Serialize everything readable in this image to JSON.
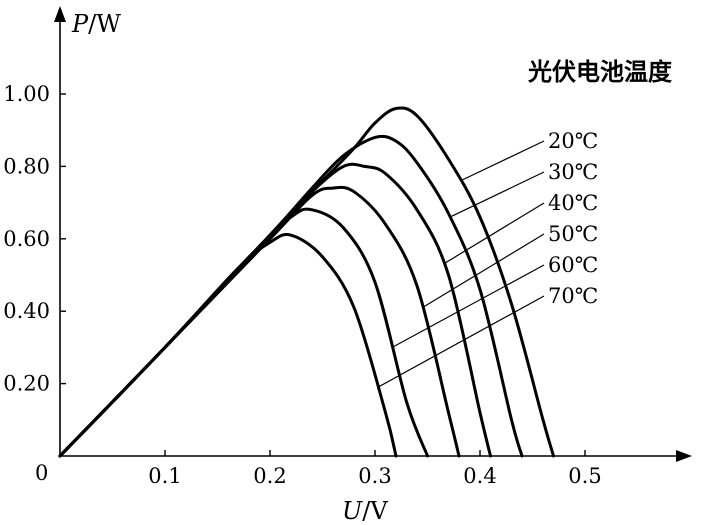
{
  "chart_data": {
    "type": "line",
    "title": "",
    "xlabel_var": "U",
    "xlabel_unit": "V",
    "ylabel_var": "P",
    "ylabel_unit": "W",
    "origin_label": "0",
    "legend_title": "光伏电池温度",
    "xlim": [
      0,
      0.6
    ],
    "ylim": [
      0,
      1.1
    ],
    "x_ticks": [
      0.1,
      0.2,
      0.3,
      0.4,
      0.5
    ],
    "x_tick_labels": [
      "0.1",
      "0.2",
      "0.3",
      "0.4",
      "0.5"
    ],
    "y_ticks": [
      0.2,
      0.4,
      0.6,
      0.8,
      1.0
    ],
    "y_tick_labels": [
      "0.20",
      "0.40",
      "0.60",
      "0.80",
      "1.00"
    ],
    "grid": false,
    "series": [
      {
        "name": "20℃",
        "x": [
          0,
          0.1,
          0.2,
          0.25,
          0.28,
          0.3,
          0.32,
          0.34,
          0.37,
          0.4,
          0.43,
          0.46,
          0.47
        ],
        "y": [
          0,
          0.3,
          0.61,
          0.76,
          0.85,
          0.92,
          0.96,
          0.94,
          0.82,
          0.66,
          0.42,
          0.1,
          0
        ]
      },
      {
        "name": "30℃",
        "x": [
          0,
          0.1,
          0.2,
          0.24,
          0.27,
          0.3,
          0.32,
          0.34,
          0.37,
          0.4,
          0.43,
          0.44
        ],
        "y": [
          0,
          0.3,
          0.61,
          0.74,
          0.83,
          0.88,
          0.87,
          0.81,
          0.67,
          0.46,
          0.1,
          0
        ]
      },
      {
        "name": "40℃",
        "x": [
          0,
          0.1,
          0.2,
          0.24,
          0.27,
          0.29,
          0.31,
          0.34,
          0.37,
          0.4,
          0.41
        ],
        "y": [
          0,
          0.3,
          0.61,
          0.73,
          0.8,
          0.8,
          0.78,
          0.68,
          0.5,
          0.12,
          0
        ]
      },
      {
        "name": "50℃",
        "x": [
          0,
          0.1,
          0.2,
          0.24,
          0.26,
          0.28,
          0.31,
          0.34,
          0.37,
          0.38
        ],
        "y": [
          0,
          0.3,
          0.6,
          0.72,
          0.74,
          0.73,
          0.64,
          0.47,
          0.12,
          0
        ]
      },
      {
        "name": "60℃",
        "x": [
          0,
          0.1,
          0.18,
          0.22,
          0.24,
          0.27,
          0.3,
          0.33,
          0.35
        ],
        "y": [
          0,
          0.3,
          0.55,
          0.66,
          0.68,
          0.63,
          0.48,
          0.15,
          0
        ]
      },
      {
        "name": "70℃",
        "x": [
          0,
          0.1,
          0.17,
          0.2,
          0.22,
          0.25,
          0.28,
          0.31,
          0.32
        ],
        "y": [
          0,
          0.3,
          0.52,
          0.59,
          0.61,
          0.55,
          0.41,
          0.12,
          0
        ]
      }
    ]
  }
}
